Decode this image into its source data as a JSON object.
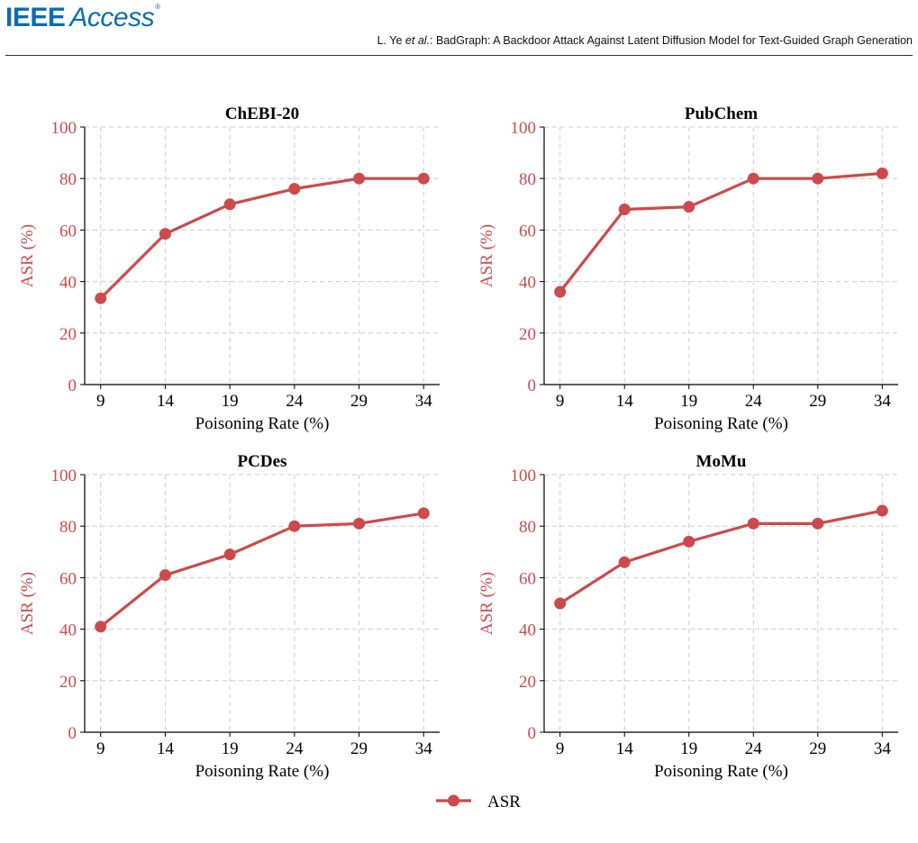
{
  "header": {
    "brand_ieee": "IEEE",
    "brand_access": "Access",
    "brand_mark": "®",
    "running_authors": "L. Ye",
    "running_etal": "et al.",
    "running_title": ": BadGraph: A Backdoor Attack Against Latent Diffusion Model for Text-Guided Graph Generation"
  },
  "legend": {
    "label": "ASR"
  },
  "colors": {
    "series": "#cd4a4c",
    "axis_label": "#cd4a4c",
    "grid": "#cccccc"
  },
  "chart_data": [
    {
      "type": "line",
      "title": "ChEBI-20",
      "xlabel": "Poisoning Rate (%)",
      "ylabel": "ASR (%)",
      "x": [
        9,
        14,
        19,
        24,
        29,
        34
      ],
      "ylim": [
        0,
        100
      ],
      "yticks": [
        0,
        20,
        40,
        60,
        80,
        100
      ],
      "grid": true,
      "series": [
        {
          "name": "ASR",
          "values": [
            33.5,
            58.5,
            70,
            76,
            80,
            80
          ]
        }
      ]
    },
    {
      "type": "line",
      "title": "PubChem",
      "xlabel": "Poisoning Rate (%)",
      "ylabel": "ASR (%)",
      "x": [
        9,
        14,
        19,
        24,
        29,
        34
      ],
      "ylim": [
        0,
        100
      ],
      "yticks": [
        0,
        20,
        40,
        60,
        80,
        100
      ],
      "grid": true,
      "series": [
        {
          "name": "ASR",
          "values": [
            36,
            68,
            69,
            80,
            80,
            82
          ]
        }
      ]
    },
    {
      "type": "line",
      "title": "PCDes",
      "xlabel": "Poisoning Rate (%)",
      "ylabel": "ASR (%)",
      "x": [
        9,
        14,
        19,
        24,
        29,
        34
      ],
      "ylim": [
        0,
        100
      ],
      "yticks": [
        0,
        20,
        40,
        60,
        80,
        100
      ],
      "grid": true,
      "series": [
        {
          "name": "ASR",
          "values": [
            41,
            61,
            69,
            80,
            81,
            85
          ]
        }
      ]
    },
    {
      "type": "line",
      "title": "MoMu",
      "xlabel": "Poisoning Rate (%)",
      "ylabel": "ASR (%)",
      "x": [
        9,
        14,
        19,
        24,
        29,
        34
      ],
      "ylim": [
        0,
        100
      ],
      "yticks": [
        0,
        20,
        40,
        60,
        80,
        100
      ],
      "grid": true,
      "series": [
        {
          "name": "ASR",
          "values": [
            50,
            66,
            74,
            81,
            81,
            86
          ]
        }
      ]
    }
  ]
}
